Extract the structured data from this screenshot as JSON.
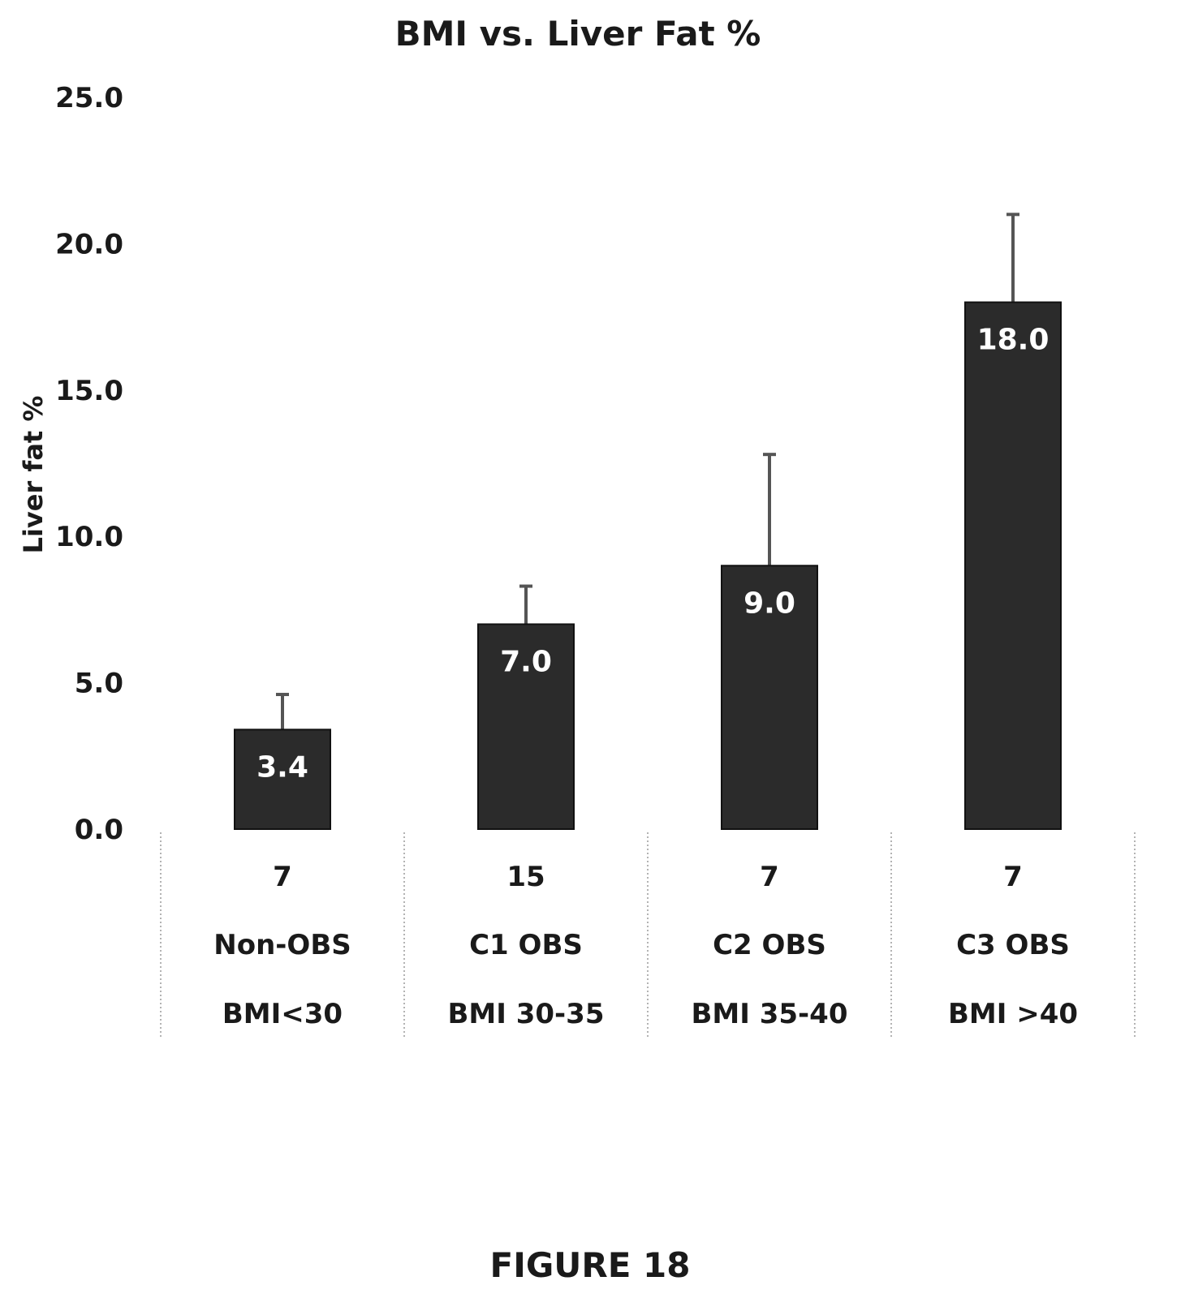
{
  "chart_data": {
    "type": "bar",
    "title": "BMI vs. Liver Fat %",
    "ylabel": "Liver fat %",
    "xlabel": "",
    "ylim": [
      0,
      25
    ],
    "yticks": [
      "0.0",
      "5.0",
      "10.0",
      "15.0",
      "20.0",
      "25.0"
    ],
    "grid": false,
    "categories": [
      {
        "n": "7",
        "group": "Non-OBS",
        "bmi": "BMI<30"
      },
      {
        "n": "15",
        "group": "C1 OBS",
        "bmi": "BMI 30-35"
      },
      {
        "n": "7",
        "group": "C2 OBS",
        "bmi": "BMI 35-40"
      },
      {
        "n": "7",
        "group": "C3 OBS",
        "bmi": "BMI >40"
      }
    ],
    "values": [
      3.4,
      7.0,
      9.0,
      18.0
    ],
    "value_labels": [
      "3.4",
      "7.0",
      "9.0",
      "18.0"
    ],
    "error_upper": [
      4.6,
      8.3,
      12.8,
      21.0
    ],
    "bar_color": "#2b2b2b",
    "error_color": "#555555"
  },
  "caption": "FIGURE 18"
}
